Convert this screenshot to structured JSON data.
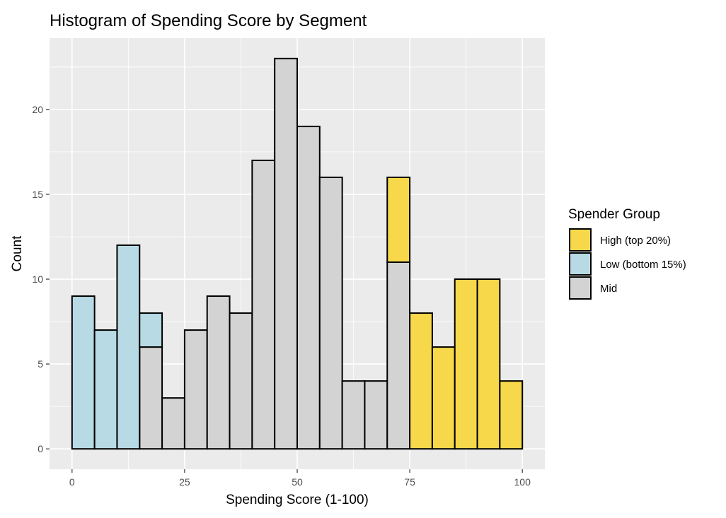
{
  "chart_data": {
    "type": "bar",
    "stacked": true,
    "title": "Histogram of Spending Score by Segment",
    "xlabel": "Spending Score (1-100)",
    "ylabel": "Count",
    "xlim": [
      -5,
      105
    ],
    "ylim": [
      -1.2,
      24.2
    ],
    "bin_width": 5,
    "x_ticks": [
      0,
      25,
      50,
      75,
      100
    ],
    "y_ticks": [
      0,
      5,
      10,
      15,
      20
    ],
    "grid": true,
    "legend_position": "right",
    "legend_title": "Spender Group",
    "series": [
      {
        "name": "High (top 20%)",
        "color": "#f7d84a",
        "bins": [
          {
            "x0": 70,
            "x1": 75,
            "count": 5
          },
          {
            "x0": 75,
            "x1": 80,
            "count": 8
          },
          {
            "x0": 80,
            "x1": 85,
            "count": 6
          },
          {
            "x0": 85,
            "x1": 90,
            "count": 10
          },
          {
            "x0": 90,
            "x1": 95,
            "count": 10
          },
          {
            "x0": 95,
            "x1": 100,
            "count": 4
          }
        ]
      },
      {
        "name": "Low (bottom 15%)",
        "color": "#b7dae4",
        "bins": [
          {
            "x0": 0,
            "x1": 5,
            "count": 9
          },
          {
            "x0": 5,
            "x1": 10,
            "count": 7
          },
          {
            "x0": 10,
            "x1": 15,
            "count": 12
          },
          {
            "x0": 15,
            "x1": 20,
            "count": 2
          }
        ]
      },
      {
        "name": "Mid",
        "color": "#d3d3d3",
        "bins": [
          {
            "x0": 15,
            "x1": 20,
            "count": 6
          },
          {
            "x0": 20,
            "x1": 25,
            "count": 3
          },
          {
            "x0": 25,
            "x1": 30,
            "count": 7
          },
          {
            "x0": 30,
            "x1": 35,
            "count": 9
          },
          {
            "x0": 35,
            "x1": 40,
            "count": 8
          },
          {
            "x0": 40,
            "x1": 45,
            "count": 17
          },
          {
            "x0": 45,
            "x1": 50,
            "count": 23
          },
          {
            "x0": 50,
            "x1": 55,
            "count": 19
          },
          {
            "x0": 55,
            "x1": 60,
            "count": 16
          },
          {
            "x0": 60,
            "x1": 65,
            "count": 4
          },
          {
            "x0": 65,
            "x1": 70,
            "count": 4
          },
          {
            "x0": 70,
            "x1": 75,
            "count": 11
          }
        ]
      }
    ],
    "stack_order_bottom_to_top": [
      "Mid",
      "Low (bottom 15%)",
      "High (top 20%)"
    ]
  }
}
